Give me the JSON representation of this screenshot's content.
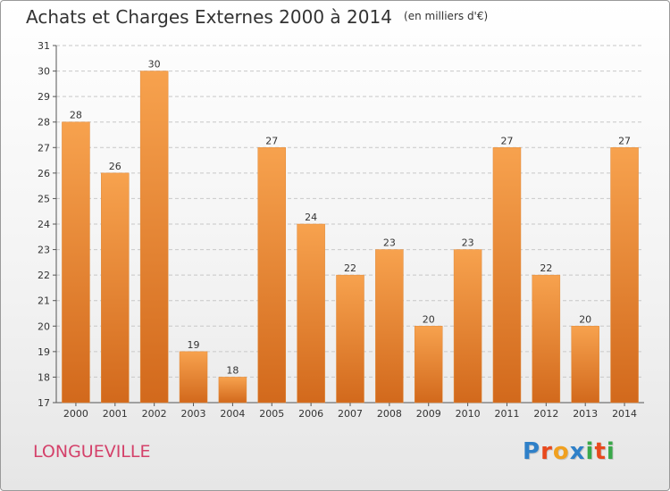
{
  "header": {
    "title": "Achats et Charges Externes 2000 à 2014",
    "unit": "(en milliers d'€)"
  },
  "footer": {
    "place": "LONGUEVILLE",
    "logo": "Proxiti",
    "logo_colors": [
      "#2f80c8",
      "#e8491d",
      "#f0a020",
      "#2f80c8",
      "#3aa84a",
      "#e8491d",
      "#3aa84a"
    ]
  },
  "colors": {
    "bar_light": "#f7a24e",
    "bar_dark": "#d2691c",
    "grid": "#c8c8c8",
    "place_text": "#d4416a"
  },
  "chart_data": {
    "type": "bar",
    "title": "Achats et Charges Externes 2000 à 2014",
    "subtitle": "(en milliers d'€)",
    "xlabel": "",
    "ylabel": "",
    "categories": [
      "2000",
      "2001",
      "2002",
      "2003",
      "2004",
      "2005",
      "2006",
      "2007",
      "2008",
      "2009",
      "2010",
      "2011",
      "2012",
      "2013",
      "2014"
    ],
    "values": [
      28,
      26,
      30,
      19,
      18,
      27,
      24,
      22,
      23,
      20,
      23,
      27,
      22,
      20,
      27
    ],
    "ylim": [
      17,
      31
    ],
    "yticks": [
      17,
      18,
      19,
      20,
      21,
      22,
      23,
      24,
      25,
      26,
      27,
      28,
      29,
      30,
      31
    ],
    "grid": true,
    "data_labels": true
  }
}
